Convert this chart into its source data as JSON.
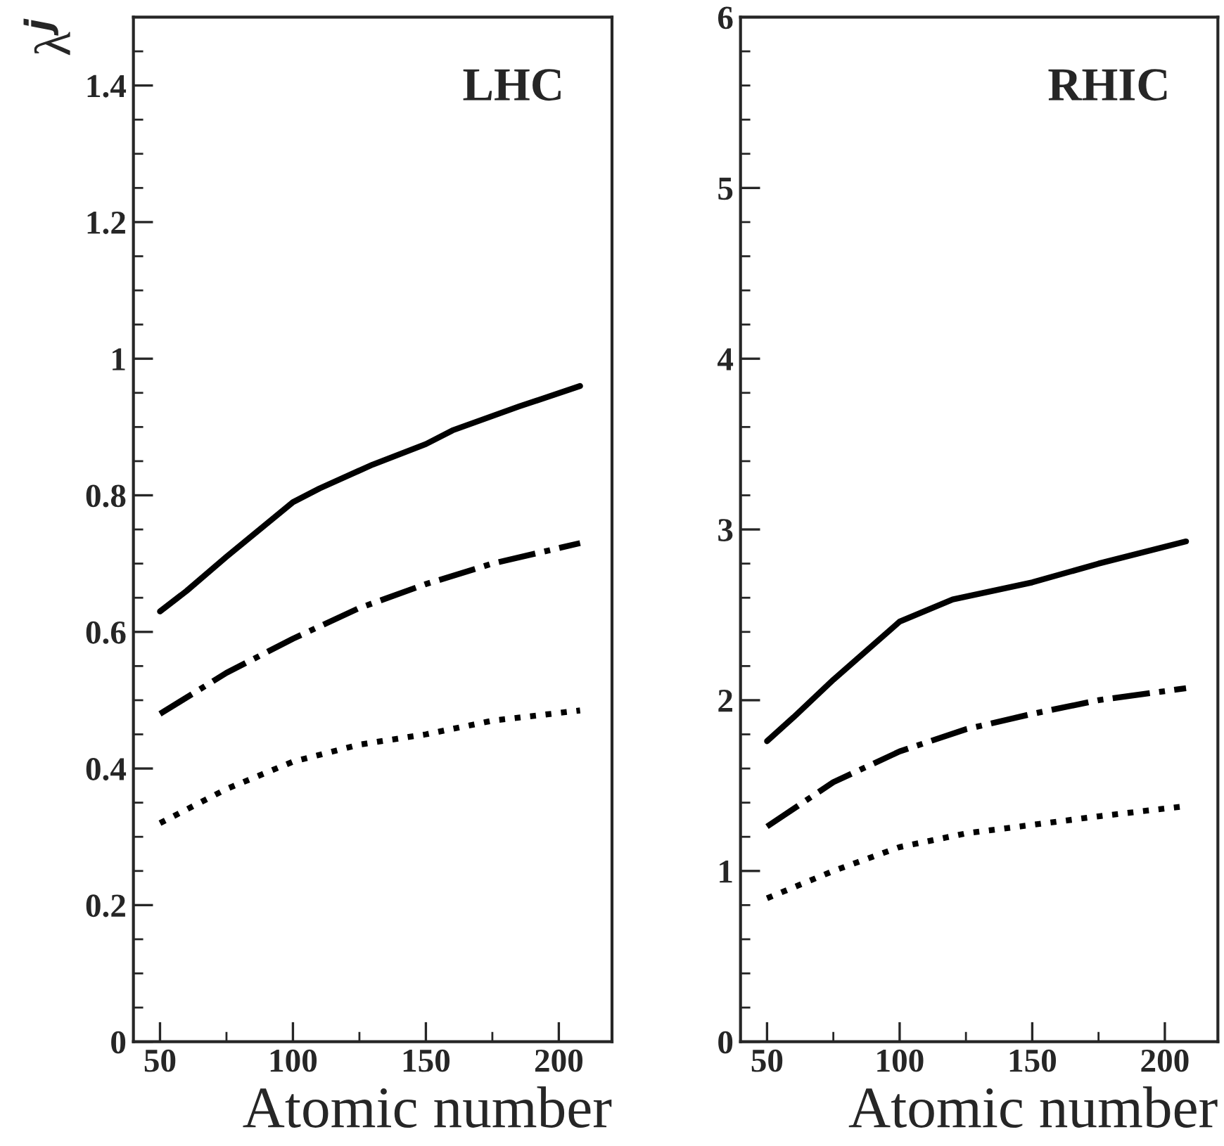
{
  "chart_data": [
    {
      "type": "line",
      "xlabel": "Atomic number",
      "ylabel": "λ$^{j}$",
      "annotations": [
        "LHC"
      ],
      "xlim": [
        40,
        220
      ],
      "xticks": [
        50,
        100,
        150,
        200
      ],
      "ylim": [
        0,
        1.5
      ],
      "yticks": [
        0,
        0.2,
        0.4,
        0.6,
        0.8,
        1,
        1.2,
        1.4
      ],
      "grid": false,
      "legend": false,
      "marker": "none",
      "series": [
        {
          "color": "#000000",
          "line_style": "solid",
          "x": [
            50,
            60,
            75,
            100,
            110,
            130,
            150,
            160,
            185,
            208
          ],
          "values": [
            0.63,
            0.66,
            0.71,
            0.79,
            0.81,
            0.845,
            0.875,
            0.895,
            0.93,
            0.96
          ]
        },
        {
          "color": "#000000",
          "line_style": "dashdot",
          "x": [
            50,
            75,
            100,
            125,
            150,
            175,
            208
          ],
          "values": [
            0.48,
            0.54,
            0.59,
            0.635,
            0.67,
            0.7,
            0.73
          ]
        },
        {
          "color": "#000000",
          "line_style": "dotted",
          "x": [
            50,
            75,
            100,
            125,
            150,
            175,
            208
          ],
          "values": [
            0.32,
            0.37,
            0.41,
            0.435,
            0.45,
            0.47,
            0.485
          ]
        }
      ]
    },
    {
      "type": "line",
      "xlabel": "Atomic number",
      "annotations": [
        "RHIC"
      ],
      "xlim": [
        40,
        220
      ],
      "xticks": [
        50,
        100,
        150,
        200
      ],
      "ylim": [
        0,
        6
      ],
      "yticks": [
        0,
        1,
        2,
        3,
        4,
        5,
        6
      ],
      "grid": false,
      "legend": false,
      "marker": "none",
      "series": [
        {
          "color": "#000000",
          "line_style": "solid",
          "x": [
            50,
            60,
            75,
            100,
            120,
            150,
            175,
            208
          ],
          "values": [
            1.76,
            1.9,
            2.12,
            2.46,
            2.59,
            2.69,
            2.8,
            2.93
          ]
        },
        {
          "color": "#000000",
          "line_style": "dashdot",
          "x": [
            50,
            75,
            100,
            125,
            150,
            175,
            208
          ],
          "values": [
            1.26,
            1.52,
            1.7,
            1.83,
            1.92,
            2.0,
            2.07
          ]
        },
        {
          "color": "#000000",
          "line_style": "dotted",
          "x": [
            50,
            75,
            100,
            125,
            150,
            175,
            208
          ],
          "values": [
            0.84,
            1.0,
            1.14,
            1.22,
            1.27,
            1.32,
            1.38
          ]
        }
      ]
    }
  ]
}
